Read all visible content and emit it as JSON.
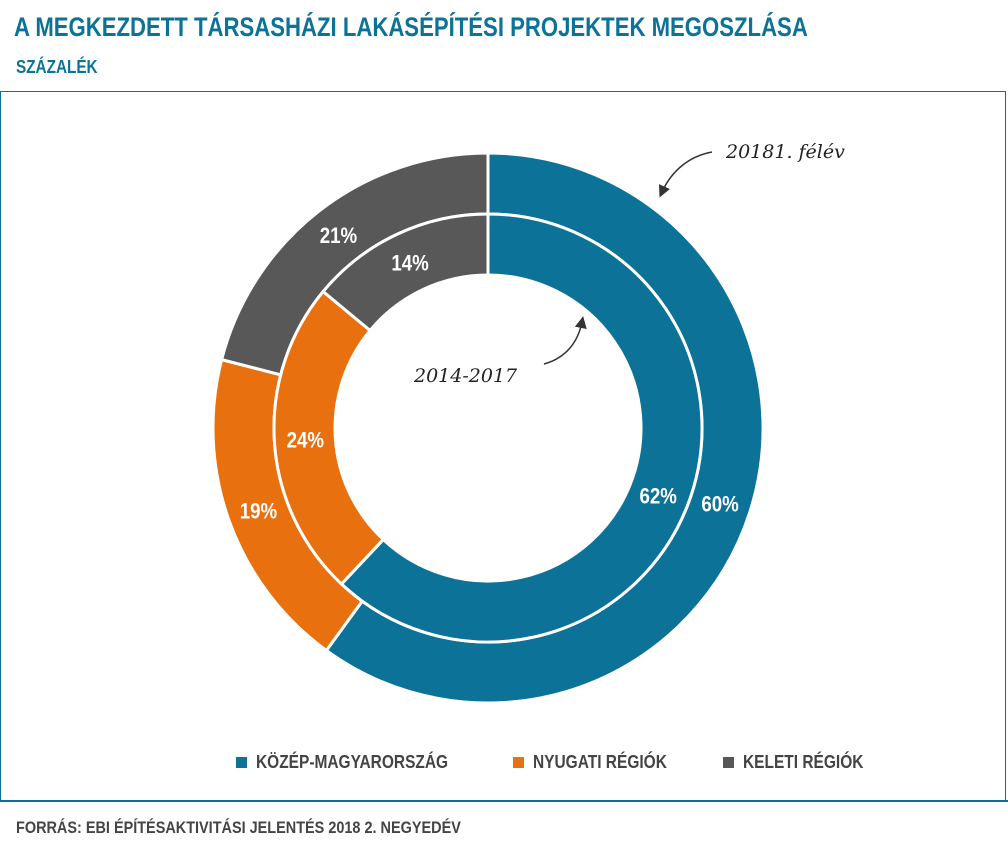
{
  "header": {
    "title": "A MEGKEZDETT TÁRSASHÁZI LAKÁSÉPÍTÉSI PROJEKTEK MEGOSZLÁSA",
    "subtitle": "SZÁZALÉK"
  },
  "footer": {
    "source": "FORRÁS: EBI ÉPÍTÉSAKTIVITÁSI JELENTÉS 2018 2. NEGYEDÉV"
  },
  "chart_data": {
    "type": "pie",
    "subtype": "nested-donut",
    "categories": [
      "KÖZÉP-MAGYARORSZÁG",
      "NYUGATI RÉGIÓK",
      "KELETI RÉGIÓK"
    ],
    "colors": [
      "#0d7297",
      "#e8700e",
      "#585858"
    ],
    "series": [
      {
        "name": "20181. félév",
        "ring": "outer",
        "values": [
          60,
          19,
          21
        ],
        "labels": [
          "60%",
          "19%",
          "21%"
        ]
      },
      {
        "name": "2014-2017",
        "ring": "inner",
        "values": [
          62,
          24,
          14
        ],
        "labels": [
          "62%",
          "24%",
          "14%"
        ]
      }
    ],
    "annotations": [
      "20181. félév",
      "2014-2017"
    ],
    "legend_position": "bottom"
  }
}
